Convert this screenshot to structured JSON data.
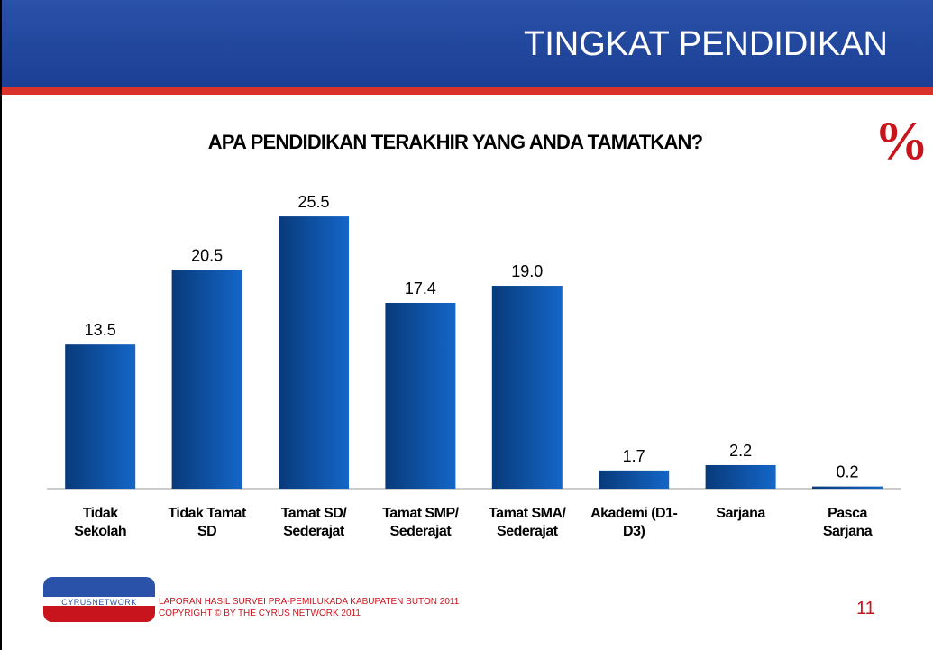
{
  "header": {
    "title": "TINGKAT PENDIDIKAN"
  },
  "chart_data": {
    "type": "bar",
    "title": "APA PENDIDIKAN TERAKHIR YANG ANDA TAMATKAN?",
    "unit_mark": "%",
    "categories": [
      "Tidak Sekolah",
      "Tidak Tamat SD",
      "Tamat SD/ Sederajat",
      "Tamat SMP/ Sederajat",
      "Tamat SMA/ Sederajat",
      "Akademi (D1-D3)",
      "Sarjana",
      "Pasca Sarjana"
    ],
    "values": [
      13.5,
      20.5,
      25.5,
      17.4,
      19.0,
      1.7,
      2.2,
      0.2
    ],
    "value_labels": [
      "13.5",
      "20.5",
      "25.5",
      "17.4",
      "19.0",
      "1.7",
      "2.2",
      "0.2"
    ],
    "color": "#0b4fa0"
  },
  "footer": {
    "logo": "CYRUSNETWORK",
    "report": "LAPORAN HASIL SURVEI PRA-PEMILUKADA KABUPATEN BUTON 2011",
    "copyright": "COPYRIGHT © BY THE CYRUS NETWORK 2011",
    "page_number": "11"
  }
}
